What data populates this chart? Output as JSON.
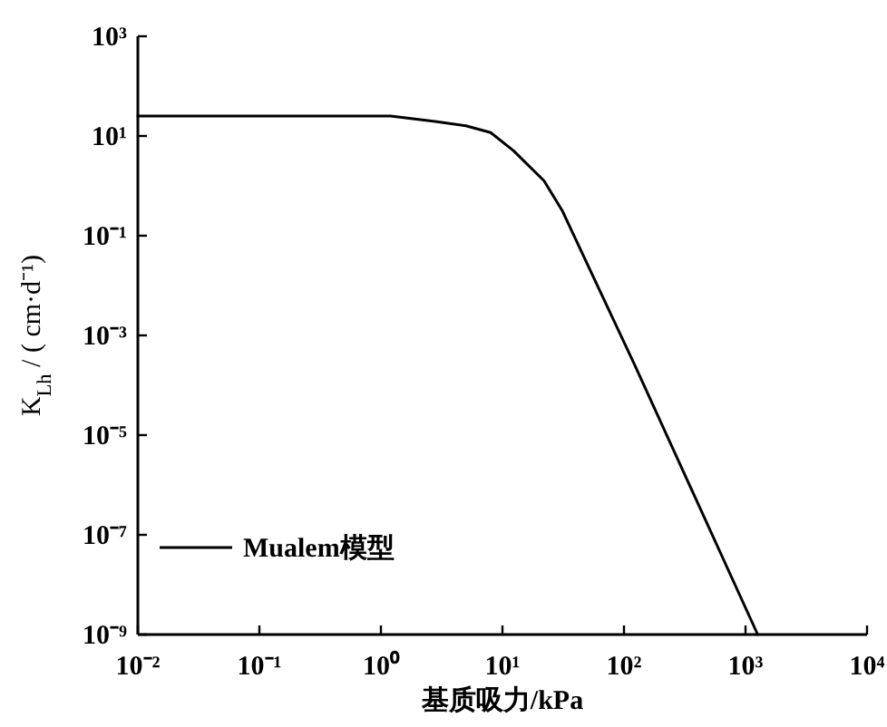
{
  "chart_data": {
    "type": "line",
    "xlabel": "基质吸力/kPa",
    "ylabel": "K$_{Lh}$ / ( cm·d⁻¹)",
    "log": "xy",
    "xlim": [
      0.01,
      10000
    ],
    "ylim": [
      1e-09,
      1000
    ],
    "xticks": [
      {
        "value": 0.01,
        "label": "10⁻²"
      },
      {
        "value": 0.1,
        "label": "10⁻¹"
      },
      {
        "value": 1,
        "label": "10⁰"
      },
      {
        "value": 10,
        "label": "10¹"
      },
      {
        "value": 100,
        "label": "10²"
      },
      {
        "value": 1000,
        "label": "10³"
      },
      {
        "value": 10000,
        "label": "10⁴"
      }
    ],
    "yticks": [
      {
        "value": 1e-09,
        "label": "10⁻⁹"
      },
      {
        "value": 1e-07,
        "label": "10⁻⁷"
      },
      {
        "value": 1e-05,
        "label": "10⁻⁵"
      },
      {
        "value": 0.001,
        "label": "10⁻³"
      },
      {
        "value": 0.1,
        "label": "10⁻¹"
      },
      {
        "value": 10,
        "label": "10¹"
      },
      {
        "value": 1000,
        "label": "10³"
      }
    ],
    "legend": "bottom left",
    "grid": false,
    "series": [
      {
        "name": "Mualem模型",
        "color": "#000000",
        "x": [
          0.01,
          1.2,
          2.8,
          5,
          8,
          12.3,
          22,
          31,
          123,
          1260
        ],
        "values": [
          25,
          25,
          19.5,
          16,
          11.7,
          5.1,
          1.26,
          0.32,
          0.00025,
          1e-09
        ]
      }
    ]
  }
}
